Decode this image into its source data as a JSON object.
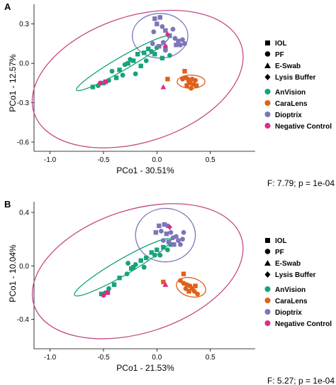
{
  "colors": {
    "AnVision": "#18a27a",
    "CaraLens": "#e0601a",
    "Dioptrix": "#7b76b8",
    "Negative Control": "#e12a8a",
    "outer_ellipse": "#c44a86"
  },
  "shape_legend": [
    "IOL",
    "PF",
    "E-Swab",
    "Lysis Buffer"
  ],
  "shape_icons": [
    "square",
    "circle",
    "triangle",
    "diamond"
  ],
  "group_legend": [
    "AnVision",
    "CaraLens",
    "Dioptrix",
    "Negative Control"
  ],
  "chart_data": [
    {
      "panel": "A",
      "type": "scatter",
      "xlabel": "PCo1 - 30.51%",
      "ylabel": "PCo1 - 12.57%",
      "stat": "F: 7.79; p = 1e-04",
      "xlim": [
        -1.15,
        0.92
      ],
      "ylim": [
        -0.67,
        0.45
      ],
      "xticks": [
        -1.0,
        -0.5,
        0.0,
        0.5
      ],
      "yticks": [
        0.3,
        0.0,
        -0.3,
        -0.6
      ],
      "xticklabels": [
        "-1.0",
        "-0.5",
        "0.0",
        "0.5"
      ],
      "yticklabels": [
        "0.3",
        "0.0",
        "-0.3",
        "-0.6"
      ],
      "ellipses": [
        {
          "group": "outer",
          "cx": -0.18,
          "cy": -0.12,
          "rx": 1.02,
          "ry": 0.48,
          "angle": 18
        },
        {
          "group": "Dioptrix",
          "cx": 0.03,
          "cy": 0.21,
          "rx": 0.26,
          "ry": 0.17,
          "angle": 0
        },
        {
          "group": "AnVision",
          "cx": -0.32,
          "cy": 0.0,
          "rx": 0.5,
          "ry": 0.05,
          "angle": 30
        },
        {
          "group": "CaraLens",
          "cx": 0.32,
          "cy": -0.14,
          "rx": 0.13,
          "ry": 0.05,
          "angle": 0
        }
      ],
      "points": [
        {
          "x": -0.6,
          "y": -0.18,
          "group": "AnVision",
          "shape": "square"
        },
        {
          "x": -0.55,
          "y": -0.17,
          "group": "AnVision",
          "shape": "circle"
        },
        {
          "x": -0.5,
          "y": -0.15,
          "group": "AnVision",
          "shape": "square"
        },
        {
          "x": -0.45,
          "y": -0.13,
          "group": "AnVision",
          "shape": "circle"
        },
        {
          "x": -0.42,
          "y": -0.06,
          "group": "AnVision",
          "shape": "circle"
        },
        {
          "x": -0.38,
          "y": -0.11,
          "group": "AnVision",
          "shape": "square"
        },
        {
          "x": -0.35,
          "y": -0.05,
          "group": "AnVision",
          "shape": "square"
        },
        {
          "x": -0.32,
          "y": -0.09,
          "group": "AnVision",
          "shape": "circle"
        },
        {
          "x": -0.3,
          "y": -0.01,
          "group": "AnVision",
          "shape": "circle"
        },
        {
          "x": -0.27,
          "y": 0.0,
          "group": "AnVision",
          "shape": "square"
        },
        {
          "x": -0.25,
          "y": 0.03,
          "group": "AnVision",
          "shape": "circle"
        },
        {
          "x": -0.22,
          "y": 0.02,
          "group": "AnVision",
          "shape": "square"
        },
        {
          "x": -0.2,
          "y": -0.08,
          "group": "AnVision",
          "shape": "circle"
        },
        {
          "x": -0.18,
          "y": 0.07,
          "group": "AnVision",
          "shape": "square"
        },
        {
          "x": -0.15,
          "y": -0.02,
          "group": "AnVision",
          "shape": "square"
        },
        {
          "x": -0.12,
          "y": 0.08,
          "group": "AnVision",
          "shape": "square"
        },
        {
          "x": -0.1,
          "y": 0.02,
          "group": "AnVision",
          "shape": "circle"
        },
        {
          "x": -0.08,
          "y": 0.11,
          "group": "AnVision",
          "shape": "square"
        },
        {
          "x": -0.05,
          "y": 0.09,
          "group": "AnVision",
          "shape": "circle"
        },
        {
          "x": -0.02,
          "y": 0.07,
          "group": "AnVision",
          "shape": "square"
        },
        {
          "x": 0.0,
          "y": 0.12,
          "group": "AnVision",
          "shape": "circle"
        },
        {
          "x": 0.05,
          "y": 0.04,
          "group": "AnVision",
          "shape": "square"
        },
        {
          "x": 0.08,
          "y": 0.11,
          "group": "AnVision",
          "shape": "square"
        },
        {
          "x": 0.12,
          "y": 0.06,
          "group": "AnVision",
          "shape": "circle"
        },
        {
          "x": -0.02,
          "y": 0.34,
          "group": "Dioptrix",
          "shape": "square"
        },
        {
          "x": 0.03,
          "y": 0.35,
          "group": "Dioptrix",
          "shape": "square"
        },
        {
          "x": 0.0,
          "y": 0.3,
          "group": "Dioptrix",
          "shape": "square"
        },
        {
          "x": 0.05,
          "y": 0.28,
          "group": "Dioptrix",
          "shape": "circle"
        },
        {
          "x": -0.03,
          "y": 0.24,
          "group": "Dioptrix",
          "shape": "circle"
        },
        {
          "x": 0.08,
          "y": 0.25,
          "group": "Dioptrix",
          "shape": "square"
        },
        {
          "x": 0.12,
          "y": 0.21,
          "group": "Dioptrix",
          "shape": "square"
        },
        {
          "x": 0.15,
          "y": 0.26,
          "group": "Dioptrix",
          "shape": "circle"
        },
        {
          "x": 0.17,
          "y": 0.19,
          "group": "Dioptrix",
          "shape": "circle"
        },
        {
          "x": 0.2,
          "y": 0.17,
          "group": "Dioptrix",
          "shape": "square"
        },
        {
          "x": 0.18,
          "y": 0.14,
          "group": "Dioptrix",
          "shape": "square"
        },
        {
          "x": 0.22,
          "y": 0.14,
          "group": "Dioptrix",
          "shape": "circle"
        },
        {
          "x": 0.24,
          "y": 0.18,
          "group": "Dioptrix",
          "shape": "circle"
        },
        {
          "x": 0.26,
          "y": 0.15,
          "group": "Dioptrix",
          "shape": "circle"
        },
        {
          "x": 0.08,
          "y": 0.1,
          "group": "Dioptrix",
          "shape": "circle"
        },
        {
          "x": 0.02,
          "y": 0.13,
          "group": "Dioptrix",
          "shape": "square"
        },
        {
          "x": 0.06,
          "y": 0.16,
          "group": "Dioptrix",
          "shape": "circle"
        },
        {
          "x": -0.04,
          "y": 0.15,
          "group": "Dioptrix",
          "shape": "circle"
        },
        {
          "x": 0.1,
          "y": 0.22,
          "group": "Negative Control",
          "shape": "diamond"
        },
        {
          "x": 0.08,
          "y": 0.13,
          "group": "Negative Control",
          "shape": "diamond"
        },
        {
          "x": -0.53,
          "y": -0.15,
          "group": "Negative Control",
          "shape": "circle"
        },
        {
          "x": -0.48,
          "y": -0.14,
          "group": "Negative Control",
          "shape": "square"
        },
        {
          "x": 0.26,
          "y": -0.06,
          "group": "CaraLens",
          "shape": "square"
        },
        {
          "x": 0.24,
          "y": -0.12,
          "group": "CaraLens",
          "shape": "circle"
        },
        {
          "x": 0.27,
          "y": -0.11,
          "group": "CaraLens",
          "shape": "circle"
        },
        {
          "x": 0.29,
          "y": -0.12,
          "group": "CaraLens",
          "shape": "circle"
        },
        {
          "x": 0.31,
          "y": -0.13,
          "group": "CaraLens",
          "shape": "circle"
        },
        {
          "x": 0.33,
          "y": -0.12,
          "group": "CaraLens",
          "shape": "circle"
        },
        {
          "x": 0.36,
          "y": -0.13,
          "group": "CaraLens",
          "shape": "circle"
        },
        {
          "x": 0.3,
          "y": -0.15,
          "group": "CaraLens",
          "shape": "square"
        },
        {
          "x": 0.34,
          "y": -0.16,
          "group": "CaraLens",
          "shape": "square"
        },
        {
          "x": 0.28,
          "y": -0.17,
          "group": "CaraLens",
          "shape": "square"
        },
        {
          "x": 0.37,
          "y": -0.17,
          "group": "CaraLens",
          "shape": "square"
        },
        {
          "x": 0.32,
          "y": -0.19,
          "group": "CaraLens",
          "shape": "circle"
        },
        {
          "x": 0.1,
          "y": -0.12,
          "group": "CaraLens",
          "shape": "square"
        },
        {
          "x": 0.06,
          "y": -0.18,
          "group": "Negative Control",
          "shape": "triangle"
        }
      ]
    },
    {
      "panel": "B",
      "type": "scatter",
      "xlabel": "PCo1 - 21.53%",
      "ylabel": "PCo1 - 10.04%",
      "stat": "F: 5.27; p = 1e-04",
      "xlim": [
        -1.15,
        0.92
      ],
      "ylim": [
        -0.62,
        0.48
      ],
      "xticks": [
        -1.0,
        -0.5,
        0.0,
        0.5
      ],
      "yticks": [
        0.4,
        0.0,
        -0.4
      ],
      "xticklabels": [
        "-1.0",
        "-0.5",
        "0.0",
        "0.5"
      ],
      "yticklabels": [
        "0.4",
        "0.0",
        "-0.4"
      ],
      "ellipses": [
        {
          "group": "outer",
          "cx": -0.18,
          "cy": -0.04,
          "rx": 1.02,
          "ry": 0.46,
          "angle": 18
        },
        {
          "group": "Dioptrix",
          "cx": 0.08,
          "cy": 0.23,
          "rx": 0.28,
          "ry": 0.2,
          "angle": 0
        },
        {
          "group": "AnVision",
          "cx": -0.32,
          "cy": -0.01,
          "rx": 0.52,
          "ry": 0.06,
          "angle": 30
        },
        {
          "group": "CaraLens",
          "cx": 0.32,
          "cy": -0.16,
          "rx": 0.14,
          "ry": 0.07,
          "angle": -15
        }
      ],
      "points": [
        {
          "x": -0.52,
          "y": -0.21,
          "group": "AnVision",
          "shape": "square"
        },
        {
          "x": -0.48,
          "y": -0.2,
          "group": "AnVision",
          "shape": "circle"
        },
        {
          "x": -0.45,
          "y": -0.17,
          "group": "AnVision",
          "shape": "circle"
        },
        {
          "x": -0.4,
          "y": -0.14,
          "group": "AnVision",
          "shape": "square"
        },
        {
          "x": -0.35,
          "y": -0.09,
          "group": "AnVision",
          "shape": "square"
        },
        {
          "x": -0.28,
          "y": -0.06,
          "group": "AnVision",
          "shape": "circle"
        },
        {
          "x": -0.24,
          "y": -0.02,
          "group": "AnVision",
          "shape": "square"
        },
        {
          "x": -0.27,
          "y": 0.02,
          "group": "AnVision",
          "shape": "circle"
        },
        {
          "x": -0.2,
          "y": 0.01,
          "group": "AnVision",
          "shape": "circle"
        },
        {
          "x": -0.22,
          "y": -0.01,
          "group": "AnVision",
          "shape": "square"
        },
        {
          "x": -0.15,
          "y": 0.04,
          "group": "AnVision",
          "shape": "square"
        },
        {
          "x": -0.12,
          "y": -0.01,
          "group": "AnVision",
          "shape": "circle"
        },
        {
          "x": -0.1,
          "y": 0.06,
          "group": "AnVision",
          "shape": "square"
        },
        {
          "x": -0.05,
          "y": 0.1,
          "group": "AnVision",
          "shape": "square"
        },
        {
          "x": -0.02,
          "y": 0.08,
          "group": "AnVision",
          "shape": "circle"
        },
        {
          "x": 0.0,
          "y": 0.12,
          "group": "AnVision",
          "shape": "square"
        },
        {
          "x": 0.03,
          "y": 0.08,
          "group": "AnVision",
          "shape": "circle"
        },
        {
          "x": 0.06,
          "y": 0.14,
          "group": "AnVision",
          "shape": "square"
        },
        {
          "x": 0.1,
          "y": 0.12,
          "group": "AnVision",
          "shape": "circle"
        },
        {
          "x": 0.13,
          "y": 0.16,
          "group": "AnVision",
          "shape": "square"
        },
        {
          "x": 0.02,
          "y": 0.3,
          "group": "Dioptrix",
          "shape": "square"
        },
        {
          "x": 0.07,
          "y": 0.31,
          "group": "Dioptrix",
          "shape": "square"
        },
        {
          "x": 0.1,
          "y": 0.3,
          "group": "Dioptrix",
          "shape": "circle"
        },
        {
          "x": 0.04,
          "y": 0.26,
          "group": "Dioptrix",
          "shape": "circle"
        },
        {
          "x": -0.01,
          "y": 0.25,
          "group": "Dioptrix",
          "shape": "square"
        },
        {
          "x": 0.09,
          "y": 0.24,
          "group": "Dioptrix",
          "shape": "square"
        },
        {
          "x": 0.13,
          "y": 0.25,
          "group": "Dioptrix",
          "shape": "circle"
        },
        {
          "x": 0.15,
          "y": 0.21,
          "group": "Dioptrix",
          "shape": "circle"
        },
        {
          "x": 0.18,
          "y": 0.22,
          "group": "Dioptrix",
          "shape": "circle"
        },
        {
          "x": 0.2,
          "y": 0.19,
          "group": "Dioptrix",
          "shape": "circle"
        },
        {
          "x": 0.16,
          "y": 0.16,
          "group": "Dioptrix",
          "shape": "square"
        },
        {
          "x": 0.22,
          "y": 0.16,
          "group": "Dioptrix",
          "shape": "circle"
        },
        {
          "x": 0.24,
          "y": 0.2,
          "group": "Dioptrix",
          "shape": "circle"
        },
        {
          "x": 0.25,
          "y": 0.25,
          "group": "Dioptrix",
          "shape": "circle"
        },
        {
          "x": 0.06,
          "y": 0.19,
          "group": "Dioptrix",
          "shape": "circle"
        },
        {
          "x": 0.11,
          "y": 0.18,
          "group": "Dioptrix",
          "shape": "square"
        },
        {
          "x": 0.12,
          "y": 0.29,
          "group": "Negative Control",
          "shape": "diamond"
        },
        {
          "x": -0.5,
          "y": -0.22,
          "group": "Negative Control",
          "shape": "circle"
        },
        {
          "x": -0.46,
          "y": -0.2,
          "group": "Negative Control",
          "shape": "square"
        },
        {
          "x": 0.25,
          "y": -0.06,
          "group": "CaraLens",
          "shape": "square"
        },
        {
          "x": 0.22,
          "y": -0.11,
          "group": "CaraLens",
          "shape": "circle"
        },
        {
          "x": 0.25,
          "y": -0.13,
          "group": "CaraLens",
          "shape": "circle"
        },
        {
          "x": 0.28,
          "y": -0.14,
          "group": "CaraLens",
          "shape": "circle"
        },
        {
          "x": 0.31,
          "y": -0.15,
          "group": "CaraLens",
          "shape": "circle"
        },
        {
          "x": 0.33,
          "y": -0.17,
          "group": "CaraLens",
          "shape": "square"
        },
        {
          "x": 0.35,
          "y": -0.19,
          "group": "CaraLens",
          "shape": "circle"
        },
        {
          "x": 0.38,
          "y": -0.21,
          "group": "CaraLens",
          "shape": "circle"
        },
        {
          "x": 0.3,
          "y": -0.19,
          "group": "CaraLens",
          "shape": "square"
        },
        {
          "x": 0.27,
          "y": -0.17,
          "group": "CaraLens",
          "shape": "circle"
        },
        {
          "x": 0.36,
          "y": -0.15,
          "group": "CaraLens",
          "shape": "square"
        },
        {
          "x": 0.06,
          "y": -0.12,
          "group": "CaraLens",
          "shape": "square"
        },
        {
          "x": 0.08,
          "y": -0.14,
          "group": "Negative Control",
          "shape": "triangle"
        }
      ]
    }
  ]
}
